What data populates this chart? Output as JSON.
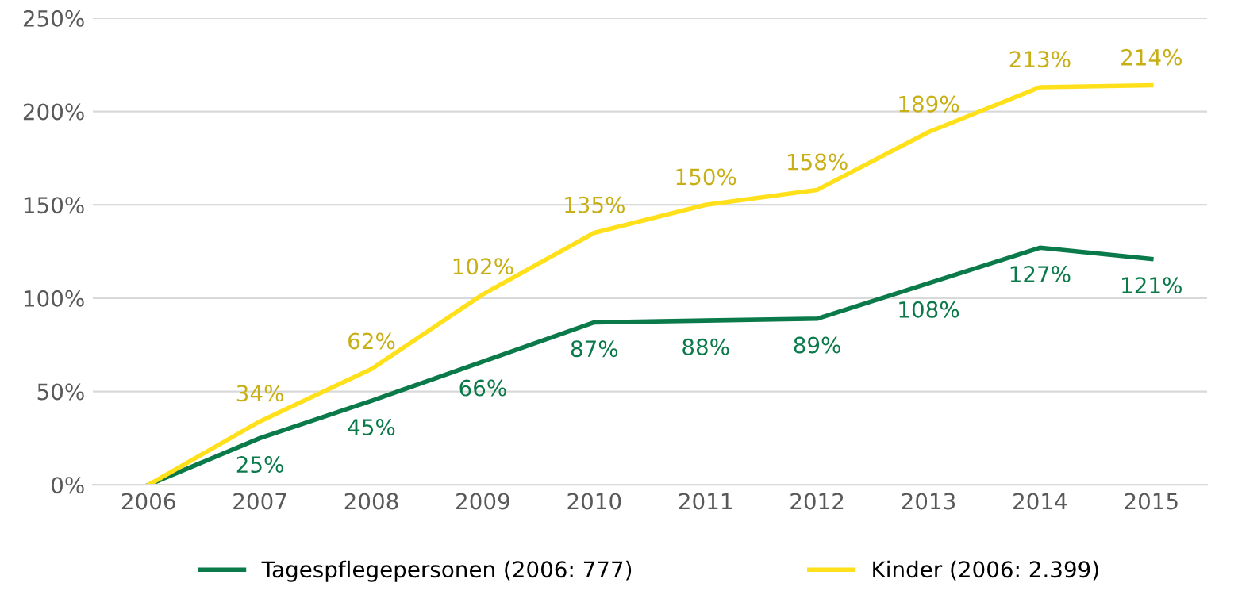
{
  "chart_data": {
    "type": "line",
    "categories": [
      "2006",
      "2007",
      "2008",
      "2009",
      "2010",
      "2011",
      "2012",
      "2013",
      "2014",
      "2015"
    ],
    "series": [
      {
        "name": "Tagespflegepersonen (2006: 777)",
        "color": "#0b7a4b",
        "values": [
          0,
          25,
          45,
          66,
          87,
          88,
          89,
          108,
          127,
          121
        ],
        "value_labels": [
          null,
          "25%",
          "45%",
          "66%",
          "87%",
          "88%",
          "89%",
          "108%",
          "127%",
          "121%"
        ]
      },
      {
        "name": "Kinder (2006: 2.399)",
        "color": "#ffe01b",
        "values": [
          0,
          34,
          62,
          102,
          135,
          150,
          158,
          189,
          213,
          214
        ],
        "value_labels": [
          null,
          "34%",
          "62%",
          "102%",
          "135%",
          "150%",
          "158%",
          "189%",
          "213%",
          "214%"
        ]
      }
    ],
    "ylim": [
      0,
      250
    ],
    "yticks": [
      {
        "value": 0,
        "label": "0%"
      },
      {
        "value": 50,
        "label": "50%"
      },
      {
        "value": 100,
        "label": "100%"
      },
      {
        "value": 150,
        "label": "150%"
      },
      {
        "value": 200,
        "label": "200%"
      },
      {
        "value": 250,
        "label": "250%"
      }
    ],
    "grid": "y",
    "legend": "bottom",
    "marker": "none",
    "line_style": "solid"
  }
}
